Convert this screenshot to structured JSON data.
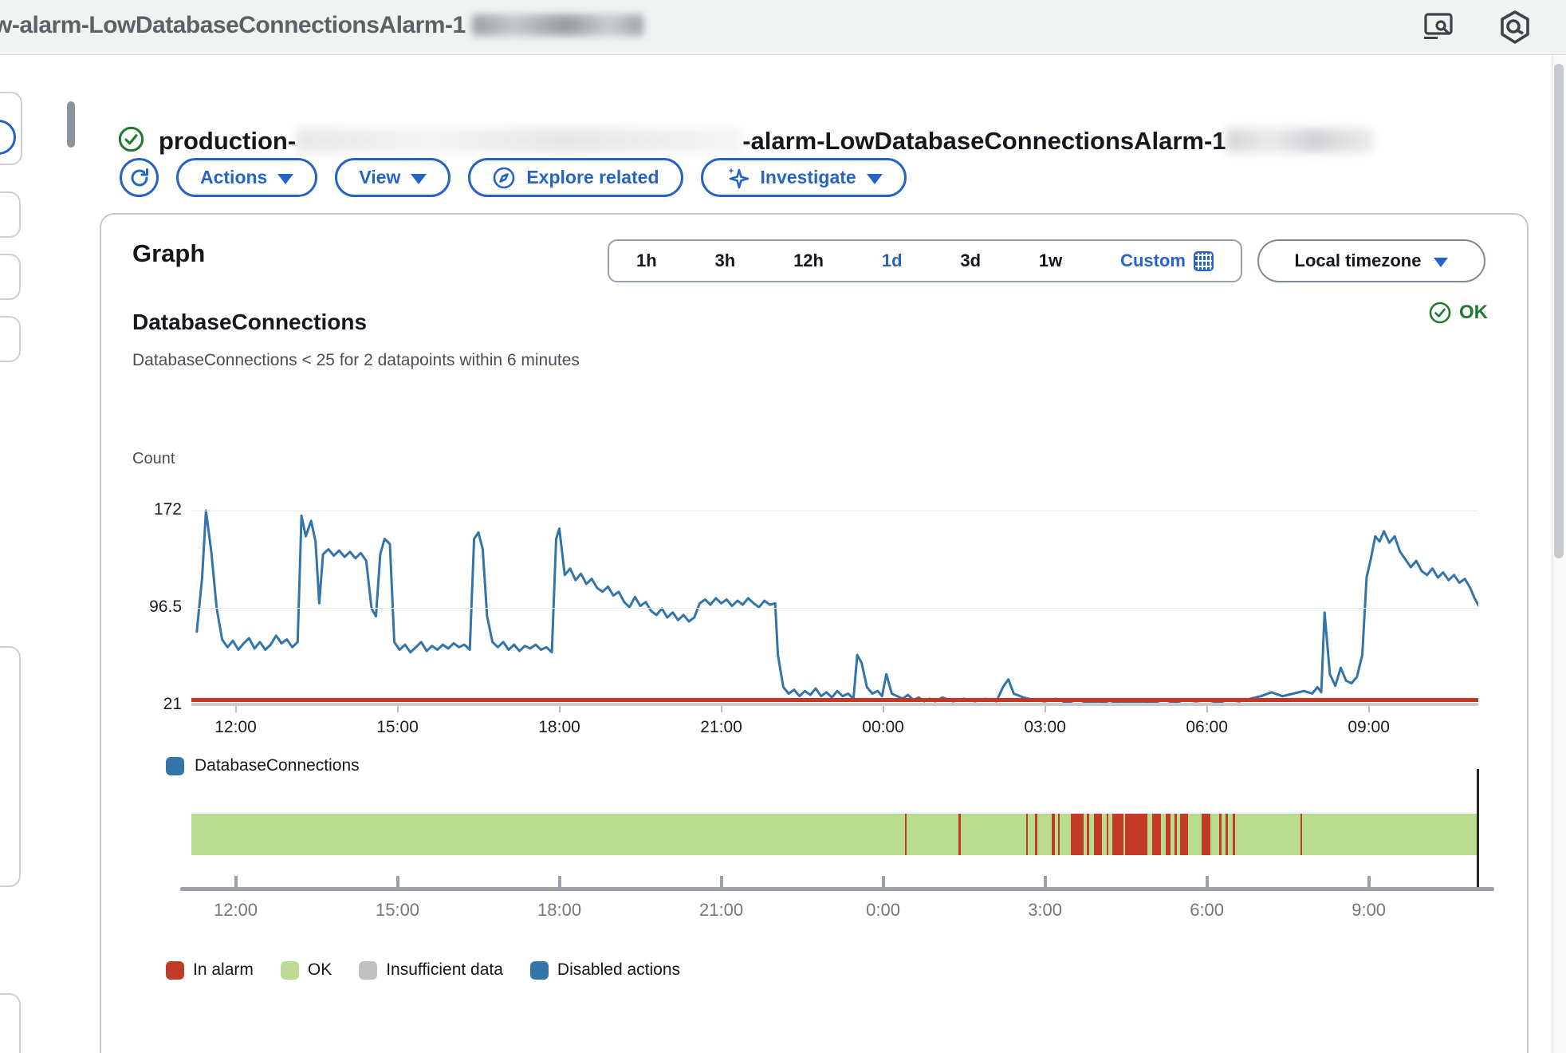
{
  "browser": {
    "tab_title_visible": "w-alarm-LowDatabaseConnectionsAlarm-1"
  },
  "header": {
    "title_prefix": "production-",
    "title_suffix": "-alarm-LowDatabaseConnectionsAlarm-1",
    "status_icon": "check-circle"
  },
  "toolbar": {
    "refresh_label": "Refresh",
    "actions_label": "Actions",
    "view_label": "View",
    "explore_label": "Explore related",
    "investigate_label": "Investigate"
  },
  "panel": {
    "title": "Graph",
    "ranges": [
      {
        "label": "1h",
        "selected": false
      },
      {
        "label": "3h",
        "selected": false
      },
      {
        "label": "12h",
        "selected": false
      },
      {
        "label": "1d",
        "selected": true
      },
      {
        "label": "3d",
        "selected": false
      },
      {
        "label": "1w",
        "selected": false
      },
      {
        "label": "Custom",
        "selected": true,
        "icon": "calendar-icon"
      }
    ],
    "timezone_label": "Local timezone",
    "state_badge": "OK"
  },
  "metric": {
    "name": "DatabaseConnections",
    "condition": "DatabaseConnections < 25 for 2 datapoints within 6 minutes",
    "unit_label": "Count"
  },
  "legend_metric": [
    {
      "label": "DatabaseConnections",
      "color": "#3374a9"
    }
  ],
  "legend_states": [
    {
      "label": "In alarm",
      "color": "#c23b28"
    },
    {
      "label": "OK",
      "color": "#b9dc92"
    },
    {
      "label": "Insufficient data",
      "color": "#bec0c2"
    },
    {
      "label": "Disabled actions",
      "color": "#3374a9"
    }
  ],
  "colors": {
    "accent_blue": "#2563c4",
    "line_blue": "#3374a9",
    "threshold_red": "#c63426",
    "in_alarm_red": "#c23b28",
    "ok_strip_green": "#b9dc92",
    "ok_badge_green": "#217a2f"
  },
  "chart_data": [
    {
      "type": "line",
      "title": "DatabaseConnections",
      "ylabel": "Count",
      "x_axis_labels": [
        "12:00",
        "15:00",
        "18:00",
        "21:00",
        "00:00",
        "03:00",
        "06:00",
        "09:00"
      ],
      "x_label_hours": [
        0,
        3,
        6,
        9,
        12,
        15,
        18,
        21
      ],
      "x_range_hours": [
        -0.82,
        23.04
      ],
      "y_tick_labels": [
        "172",
        "96.5",
        "21"
      ],
      "y_tick_values": [
        172,
        96.5,
        21
      ],
      "ylim": [
        21,
        172
      ],
      "grid": true,
      "threshold": {
        "value": 25,
        "color": "#c63426"
      },
      "series": [
        {
          "name": "DatabaseConnections",
          "color": "#3374a9",
          "points": [
            [
              -0.72,
              78
            ],
            [
              -0.62,
              120
            ],
            [
              -0.55,
              172
            ],
            [
              -0.45,
              140
            ],
            [
              -0.35,
              96
            ],
            [
              -0.25,
              72
            ],
            [
              -0.15,
              66
            ],
            [
              -0.05,
              71
            ],
            [
              0.05,
              64
            ],
            [
              0.15,
              69
            ],
            [
              0.25,
              73
            ],
            [
              0.35,
              65
            ],
            [
              0.45,
              70
            ],
            [
              0.55,
              64
            ],
            [
              0.65,
              68
            ],
            [
              0.75,
              75
            ],
            [
              0.85,
              69
            ],
            [
              0.95,
              72
            ],
            [
              1.05,
              66
            ],
            [
              1.15,
              70
            ],
            [
              1.22,
              168
            ],
            [
              1.3,
              152
            ],
            [
              1.4,
              164
            ],
            [
              1.48,
              148
            ],
            [
              1.55,
              100
            ],
            [
              1.62,
              138
            ],
            [
              1.72,
              142
            ],
            [
              1.82,
              137
            ],
            [
              1.92,
              141
            ],
            [
              2.02,
              136
            ],
            [
              2.12,
              140
            ],
            [
              2.22,
              135
            ],
            [
              2.32,
              139
            ],
            [
              2.42,
              133
            ],
            [
              2.52,
              96
            ],
            [
              2.6,
              90
            ],
            [
              2.68,
              138
            ],
            [
              2.76,
              150
            ],
            [
              2.86,
              146
            ],
            [
              2.94,
              70
            ],
            [
              3.04,
              64
            ],
            [
              3.14,
              68
            ],
            [
              3.24,
              62
            ],
            [
              3.34,
              66
            ],
            [
              3.44,
              70
            ],
            [
              3.54,
              63
            ],
            [
              3.64,
              67
            ],
            [
              3.74,
              64
            ],
            [
              3.84,
              68
            ],
            [
              3.94,
              65
            ],
            [
              4.04,
              69
            ],
            [
              4.14,
              66
            ],
            [
              4.24,
              68
            ],
            [
              4.34,
              64
            ],
            [
              4.42,
              150
            ],
            [
              4.5,
              155
            ],
            [
              4.58,
              142
            ],
            [
              4.66,
              90
            ],
            [
              4.76,
              70
            ],
            [
              4.86,
              66
            ],
            [
              4.96,
              70
            ],
            [
              5.06,
              64
            ],
            [
              5.16,
              68
            ],
            [
              5.26,
              63
            ],
            [
              5.36,
              67
            ],
            [
              5.46,
              65
            ],
            [
              5.56,
              68
            ],
            [
              5.66,
              64
            ],
            [
              5.76,
              66
            ],
            [
              5.86,
              62
            ],
            [
              5.94,
              150
            ],
            [
              6.0,
              158
            ],
            [
              6.1,
              122
            ],
            [
              6.2,
              127
            ],
            [
              6.3,
              118
            ],
            [
              6.4,
              123
            ],
            [
              6.5,
              115
            ],
            [
              6.6,
              119
            ],
            [
              6.7,
              112
            ],
            [
              6.8,
              109
            ],
            [
              6.9,
              113
            ],
            [
              7.0,
              106
            ],
            [
              7.1,
              109
            ],
            [
              7.2,
              101
            ],
            [
              7.3,
              97
            ],
            [
              7.4,
              105
            ],
            [
              7.5,
              98
            ],
            [
              7.6,
              101
            ],
            [
              7.7,
              94
            ],
            [
              7.8,
              91
            ],
            [
              7.9,
              96
            ],
            [
              8.0,
              89
            ],
            [
              8.1,
              93
            ],
            [
              8.2,
              87
            ],
            [
              8.3,
              91
            ],
            [
              8.4,
              86
            ],
            [
              8.5,
              89
            ],
            [
              8.6,
              100
            ],
            [
              8.7,
              103
            ],
            [
              8.8,
              99
            ],
            [
              8.9,
              104
            ],
            [
              9.0,
              100
            ],
            [
              9.1,
              103
            ],
            [
              9.2,
              98
            ],
            [
              9.3,
              102
            ],
            [
              9.4,
              99
            ],
            [
              9.5,
              104
            ],
            [
              9.6,
              100
            ],
            [
              9.7,
              97
            ],
            [
              9.8,
              102
            ],
            [
              9.9,
              99
            ],
            [
              10.0,
              100
            ],
            [
              10.05,
              60
            ],
            [
              10.15,
              35
            ],
            [
              10.25,
              30
            ],
            [
              10.35,
              33
            ],
            [
              10.45,
              28
            ],
            [
              10.55,
              32
            ],
            [
              10.65,
              29
            ],
            [
              10.75,
              34
            ],
            [
              10.85,
              28
            ],
            [
              10.95,
              31
            ],
            [
              11.05,
              27
            ],
            [
              11.15,
              32
            ],
            [
              11.25,
              28
            ],
            [
              11.35,
              30
            ],
            [
              11.45,
              26
            ],
            [
              11.52,
              60
            ],
            [
              11.6,
              54
            ],
            [
              11.7,
              35
            ],
            [
              11.8,
              30
            ],
            [
              11.9,
              32
            ],
            [
              11.98,
              28
            ],
            [
              12.06,
              45
            ],
            [
              12.16,
              30
            ],
            [
              12.26,
              28
            ],
            [
              12.36,
              26
            ],
            [
              12.46,
              29
            ],
            [
              12.56,
              25
            ],
            [
              12.66,
              27
            ],
            [
              12.76,
              24
            ],
            [
              12.86,
              26
            ],
            [
              12.96,
              24
            ],
            [
              13.1,
              27
            ],
            [
              13.3,
              24
            ],
            [
              13.5,
              26
            ],
            [
              13.7,
              24
            ],
            [
              13.9,
              26
            ],
            [
              14.1,
              24
            ],
            [
              14.22,
              35
            ],
            [
              14.32,
              41
            ],
            [
              14.42,
              30
            ],
            [
              14.6,
              27
            ],
            [
              14.8,
              25
            ],
            [
              15.0,
              24
            ],
            [
              15.2,
              26
            ],
            [
              15.4,
              23
            ],
            [
              15.6,
              25
            ],
            [
              15.8,
              23
            ],
            [
              16.0,
              24
            ],
            [
              16.2,
              22
            ],
            [
              16.4,
              24
            ],
            [
              16.6,
              23
            ],
            [
              16.8,
              24
            ],
            [
              17.0,
              23
            ],
            [
              17.2,
              25
            ],
            [
              17.4,
              23
            ],
            [
              17.6,
              25
            ],
            [
              17.8,
              24
            ],
            [
              18.0,
              25
            ],
            [
              18.2,
              23
            ],
            [
              18.4,
              25
            ],
            [
              18.6,
              24
            ],
            [
              18.8,
              26
            ],
            [
              19.0,
              28
            ],
            [
              19.2,
              31
            ],
            [
              19.4,
              28
            ],
            [
              19.6,
              30
            ],
            [
              19.8,
              32
            ],
            [
              19.95,
              30
            ],
            [
              20.05,
              35
            ],
            [
              20.12,
              31
            ],
            [
              20.18,
              93
            ],
            [
              20.28,
              45
            ],
            [
              20.38,
              36
            ],
            [
              20.48,
              50
            ],
            [
              20.58,
              40
            ],
            [
              20.68,
              38
            ],
            [
              20.78,
              43
            ],
            [
              20.88,
              60
            ],
            [
              20.96,
              120
            ],
            [
              21.04,
              135
            ],
            [
              21.12,
              152
            ],
            [
              21.2,
              148
            ],
            [
              21.28,
              156
            ],
            [
              21.38,
              147
            ],
            [
              21.48,
              152
            ],
            [
              21.58,
              140
            ],
            [
              21.68,
              134
            ],
            [
              21.78,
              128
            ],
            [
              21.88,
              133
            ],
            [
              21.98,
              125
            ],
            [
              22.08,
              122
            ],
            [
              22.18,
              127
            ],
            [
              22.28,
              120
            ],
            [
              22.38,
              124
            ],
            [
              22.48,
              118
            ],
            [
              22.58,
              122
            ],
            [
              22.68,
              116
            ],
            [
              22.78,
              119
            ],
            [
              22.88,
              112
            ],
            [
              22.96,
              104
            ],
            [
              23.04,
              98
            ]
          ]
        }
      ]
    },
    {
      "type": "state-timeline",
      "name": "Alarm state timeline",
      "x_axis_labels": [
        "12:00",
        "15:00",
        "18:00",
        "21:00",
        "0:00",
        "3:00",
        "6:00",
        "9:00"
      ],
      "x_label_hours": [
        0,
        3,
        6,
        9,
        12,
        15,
        18,
        21
      ],
      "ok_color": "#b9dc92",
      "in_alarm_color": "#c23b28",
      "in_alarm_intervals_hours_after_1200": [
        [
          12.4,
          12.43
        ],
        [
          13.4,
          13.44
        ],
        [
          14.65,
          14.68
        ],
        [
          14.82,
          14.85
        ],
        [
          15.12,
          15.18
        ],
        [
          15.24,
          15.27
        ],
        [
          15.48,
          15.72
        ],
        [
          15.78,
          15.82
        ],
        [
          15.9,
          16.06
        ],
        [
          16.14,
          16.18
        ],
        [
          16.24,
          16.45
        ],
        [
          16.49,
          16.9
        ],
        [
          16.98,
          17.15
        ],
        [
          17.23,
          17.32
        ],
        [
          17.4,
          17.44
        ],
        [
          17.5,
          17.65
        ],
        [
          17.9,
          18.07
        ],
        [
          18.23,
          18.27
        ],
        [
          18.35,
          18.38
        ],
        [
          18.48,
          18.51
        ],
        [
          19.73,
          19.77
        ]
      ]
    }
  ]
}
